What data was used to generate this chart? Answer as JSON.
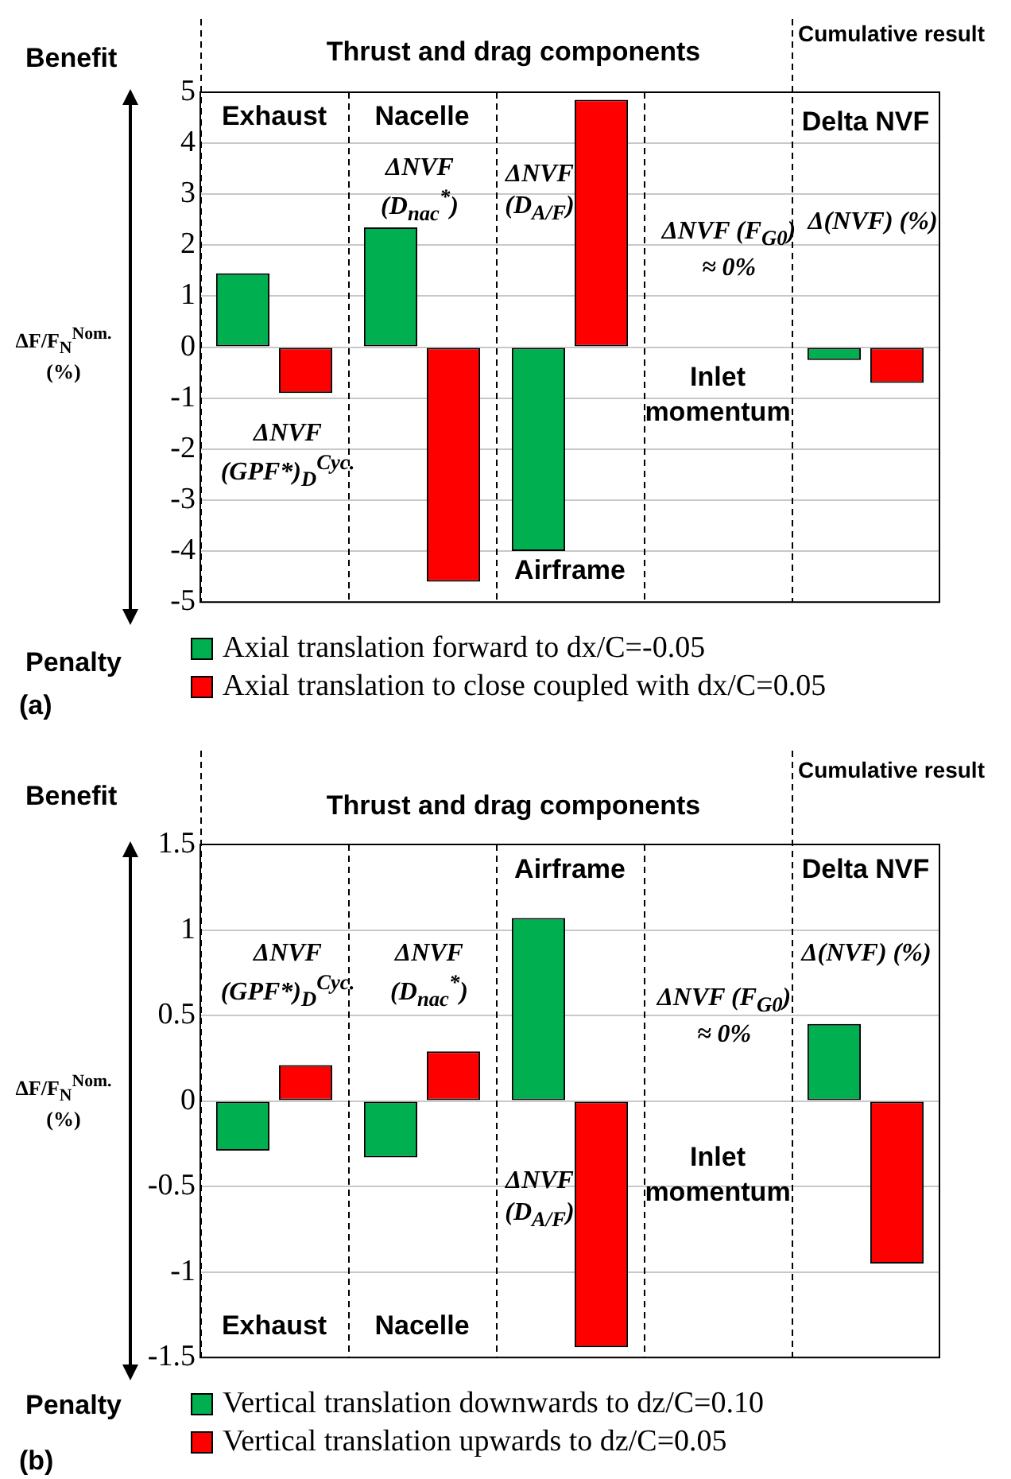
{
  "chart_data": [
    {
      "type": "bar",
      "categories": [
        "Exhaust",
        "Nacelle",
        "Airframe",
        "Inlet momentum",
        "Delta NVF"
      ],
      "ylabel": "ΔF/F$_{N}$$^{Nom.}$ (%)",
      "ylim": [
        -5,
        5
      ],
      "yticks": [
        -5,
        -4,
        -3,
        -2,
        -1,
        0,
        1,
        2,
        3,
        4,
        5
      ],
      "grid": "y",
      "legend": "bottom",
      "series": [
        {
          "name": "Axial translation forward to dx/C=-0.05",
          "color": "#00b050",
          "values": [
            1.45,
            2.35,
            -4.0,
            0,
            -0.25
          ]
        },
        {
          "name": "Axial translation to close coupled with dx/C=0.05",
          "color": "#ff0000",
          "values": [
            -0.9,
            -4.6,
            4.85,
            0,
            -0.7
          ]
        }
      ],
      "annotations": [
        "Thrust and drag components",
        "Cumulative result",
        "Benefit",
        "Penalty",
        "(a)",
        "ΔNVF (GPF*)$_{D}$$^{Cyc.}$",
        "ΔNVF (D$_{nac}$$^{*}$)",
        "ΔNVF (D$_{A/F}$)",
        "ΔNVF (F$_{G0}$) ≈ 0%",
        "Δ(NVF) (%)"
      ]
    },
    {
      "type": "bar",
      "categories": [
        "Exhaust",
        "Nacelle",
        "Airframe",
        "Inlet momentum",
        "Delta NVF"
      ],
      "ylabel": "ΔF/F$_{N}$$^{Nom.}$ (%)",
      "ylim": [
        -1.5,
        1.5
      ],
      "yticks": [
        -1.5,
        -1,
        -0.5,
        0,
        0.5,
        1,
        1.5
      ],
      "grid": "y",
      "legend": "bottom",
      "series": [
        {
          "name": "Vertical translation downwards to dz/C=0.10",
          "color": "#00b050",
          "values": [
            -0.29,
            -0.33,
            1.07,
            0,
            0.45
          ]
        },
        {
          "name": "Vertical translation upwards to dz/C=0.05",
          "color": "#ff0000",
          "values": [
            0.21,
            0.29,
            -1.44,
            0,
            -0.95
          ]
        }
      ],
      "annotations": [
        "Thrust and drag components",
        "Cumulative result",
        "Benefit",
        "Penalty",
        "(b)",
        "ΔNVF (GPF*)$_{D}$$^{Cyc.}$",
        "ΔNVF (D$_{nac}$$^{*}$)",
        "ΔNVF (D$_{A/F}$)",
        "ΔNVF (F$_{G0}$) ≈ 0%",
        "Δ(NVF) (%)"
      ]
    }
  ]
}
